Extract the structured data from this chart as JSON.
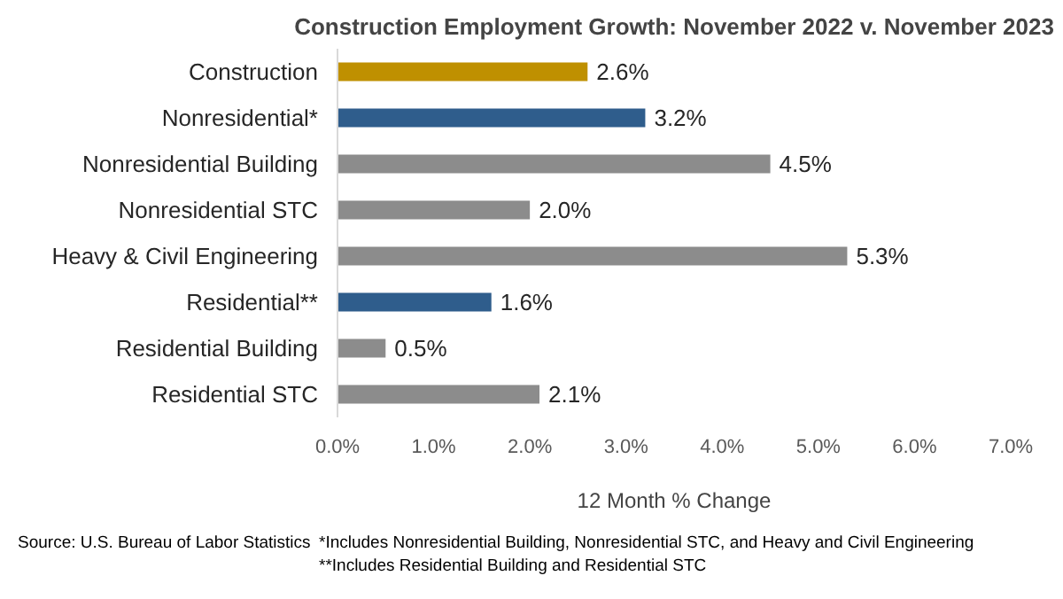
{
  "chart_data": {
    "type": "bar",
    "orientation": "horizontal",
    "title": "Construction Employment Growth: November 2022 v. November 2023",
    "xlabel": "12 Month % Change",
    "categories": [
      "Construction",
      "Nonresidential*",
      "Nonresidential Building",
      "Nonresidential STC",
      "Heavy & Civil Engineering",
      "Residential**",
      "Residential Building",
      "Residential STC"
    ],
    "values": [
      2.6,
      3.2,
      4.5,
      2.0,
      5.3,
      1.6,
      0.5,
      2.1
    ],
    "colors": [
      "#bf9000",
      "#2f5d8c",
      "#8c8c8c",
      "#8c8c8c",
      "#8c8c8c",
      "#2f5d8c",
      "#8c8c8c",
      "#8c8c8c"
    ],
    "value_labels": [
      "2.6%",
      "3.2%",
      "4.5%",
      "2.0%",
      "5.3%",
      "1.6%",
      "0.5%",
      "2.1%"
    ],
    "xlim": [
      0,
      7
    ],
    "xticks": [
      {
        "value": 0,
        "label": "0.0%"
      },
      {
        "value": 1,
        "label": "1.0%"
      },
      {
        "value": 2,
        "label": "2.0%"
      },
      {
        "value": 3,
        "label": "3.0%"
      },
      {
        "value": 4,
        "label": "4.0%"
      },
      {
        "value": 5,
        "label": "5.0%"
      },
      {
        "value": 6,
        "label": "6.0%"
      },
      {
        "value": 7,
        "label": "7.0%"
      }
    ],
    "grid": false,
    "annotations": [
      "Source:  U.S. Bureau of Labor Statistics",
      "*Includes Nonresidential Building, Nonresidential STC, and Heavy and Civil Engineering",
      "**Includes Residential Building and Residential STC"
    ]
  }
}
